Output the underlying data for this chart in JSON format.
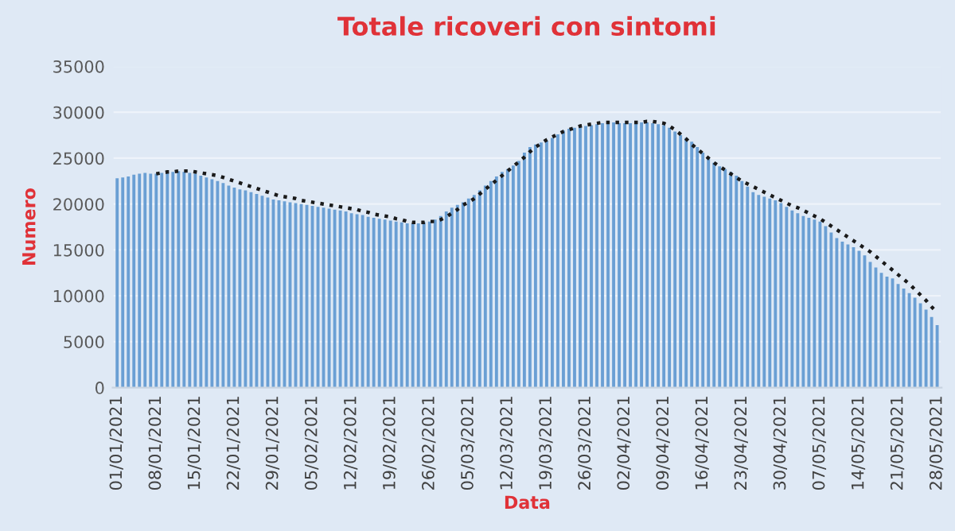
{
  "chart_data": {
    "type": "bar",
    "title": "Totale ricoveri con sintomi",
    "xlabel": "Data",
    "ylabel": "Numero",
    "categories": [
      "01/01/2021",
      null,
      null,
      null,
      null,
      null,
      null,
      "08/01/2021",
      null,
      null,
      null,
      null,
      null,
      null,
      "15/01/2021",
      null,
      null,
      null,
      null,
      null,
      null,
      "22/01/2021",
      null,
      null,
      null,
      null,
      null,
      null,
      "29/01/2021",
      null,
      null,
      null,
      null,
      null,
      null,
      "05/02/2021",
      null,
      null,
      null,
      null,
      null,
      null,
      "12/02/2021",
      null,
      null,
      null,
      null,
      null,
      null,
      "19/02/2021",
      null,
      null,
      null,
      null,
      null,
      null,
      "26/02/2021",
      null,
      null,
      null,
      null,
      null,
      null,
      "05/03/2021",
      null,
      null,
      null,
      null,
      null,
      null,
      "12/03/2021",
      null,
      null,
      null,
      null,
      null,
      null,
      "19/03/2021",
      null,
      null,
      null,
      null,
      null,
      null,
      "26/03/2021",
      null,
      null,
      null,
      null,
      null,
      null,
      "02/04/2021",
      null,
      null,
      null,
      null,
      null,
      null,
      "09/04/2021",
      null,
      null,
      null,
      null,
      null,
      null,
      "16/04/2021",
      null,
      null,
      null,
      null,
      null,
      null,
      "23/04/2021",
      null,
      null,
      null,
      null,
      null,
      null,
      "30/04/2021",
      null,
      null,
      null,
      null,
      null,
      null,
      "07/05/2021",
      null,
      null,
      null,
      null,
      null,
      null,
      "14/05/2021",
      null,
      null,
      null,
      null,
      null,
      null,
      "21/05/2021",
      null,
      null,
      null,
      null,
      null,
      null,
      "28/05/2021"
    ],
    "series": [
      {
        "color": "#6a9fd4",
        "values": [
          22800,
          22900,
          23000,
          23200,
          23300,
          23400,
          23300,
          23300,
          23400,
          23500,
          23500,
          23600,
          23500,
          23400,
          23300,
          23100,
          22900,
          22700,
          22500,
          22300,
          22000,
          21800,
          21600,
          21500,
          21300,
          21100,
          20900,
          20700,
          20500,
          20400,
          20300,
          20200,
          20100,
          20000,
          19900,
          19800,
          19700,
          19600,
          19500,
          19400,
          19300,
          19200,
          19000,
          18900,
          18800,
          18600,
          18500,
          18400,
          18300,
          18200,
          18100,
          18000,
          17900,
          17900,
          17900,
          18000,
          18100,
          18300,
          18700,
          19200,
          19600,
          19900,
          20200,
          20600,
          21000,
          21500,
          22000,
          22500,
          23000,
          23500,
          23800,
          24200,
          24700,
          25600,
          26200,
          26500,
          26700,
          26900,
          27200,
          27600,
          28000,
          28200,
          28300,
          28400,
          28500,
          28600,
          28700,
          28800,
          28800,
          28900,
          28800,
          28800,
          28800,
          28900,
          28900,
          28900,
          28800,
          28700,
          28600,
          28300,
          27900,
          27500,
          27200,
          26800,
          26200,
          25600,
          25000,
          24500,
          24100,
          23800,
          23500,
          23100,
          22500,
          21900,
          21300,
          21000,
          20800,
          20600,
          20400,
          20100,
          19700,
          19300,
          19000,
          18700,
          18500,
          18300,
          18100,
          17600,
          16900,
          16300,
          15900,
          15600,
          15300,
          14900,
          14400,
          13700,
          13100,
          12500,
          12100,
          11900,
          11300,
          10800,
          10300,
          9800,
          9200,
          8500,
          7700,
          6800
        ]
      },
      {
        "type": "line",
        "color": "#1a1a1a",
        "line_style": "dotted",
        "values": [
          null,
          null,
          null,
          null,
          null,
          null,
          null,
          23300,
          23400,
          23500,
          23500,
          23600,
          23600,
          23600,
          23500,
          23400,
          23300,
          23200,
          23100,
          22900,
          22700,
          22500,
          22300,
          22100,
          21900,
          21700,
          21500,
          21300,
          21100,
          20900,
          20800,
          20700,
          20600,
          20400,
          20300,
          20200,
          20100,
          20000,
          19900,
          19800,
          19700,
          19600,
          19500,
          19400,
          19200,
          19100,
          18900,
          18800,
          18700,
          18600,
          18400,
          18300,
          18100,
          18000,
          18000,
          18000,
          18100,
          18100,
          18300,
          18600,
          19000,
          19400,
          19900,
          20200,
          20600,
          21100,
          21600,
          22100,
          22600,
          23100,
          23600,
          24100,
          24600,
          25100,
          25700,
          26200,
          26600,
          27000,
          27300,
          27600,
          27900,
          28100,
          28300,
          28500,
          28600,
          28700,
          28800,
          28900,
          28900,
          28900,
          28900,
          28900,
          28900,
          28900,
          28900,
          29000,
          29000,
          28900,
          28800,
          28500,
          28100,
          27600,
          27100,
          26500,
          26000,
          25500,
          25000,
          24500,
          24100,
          23700,
          23300,
          22900,
          22500,
          22200,
          21900,
          21600,
          21300,
          21000,
          20700,
          20400,
          20100,
          19800,
          19600,
          19300,
          19000,
          18700,
          18400,
          18000,
          17600,
          17200,
          16800,
          16400,
          16000,
          15600,
          15200,
          14800,
          14300,
          13800,
          13300,
          12800,
          12300,
          11800,
          11300,
          10700,
          10100,
          9500,
          8800,
          8200
        ]
      }
    ],
    "ylim": [
      0,
      35000
    ],
    "yticks": [
      0,
      5000,
      10000,
      15000,
      20000,
      25000,
      30000,
      35000
    ],
    "grid": "y",
    "marker": "none"
  }
}
